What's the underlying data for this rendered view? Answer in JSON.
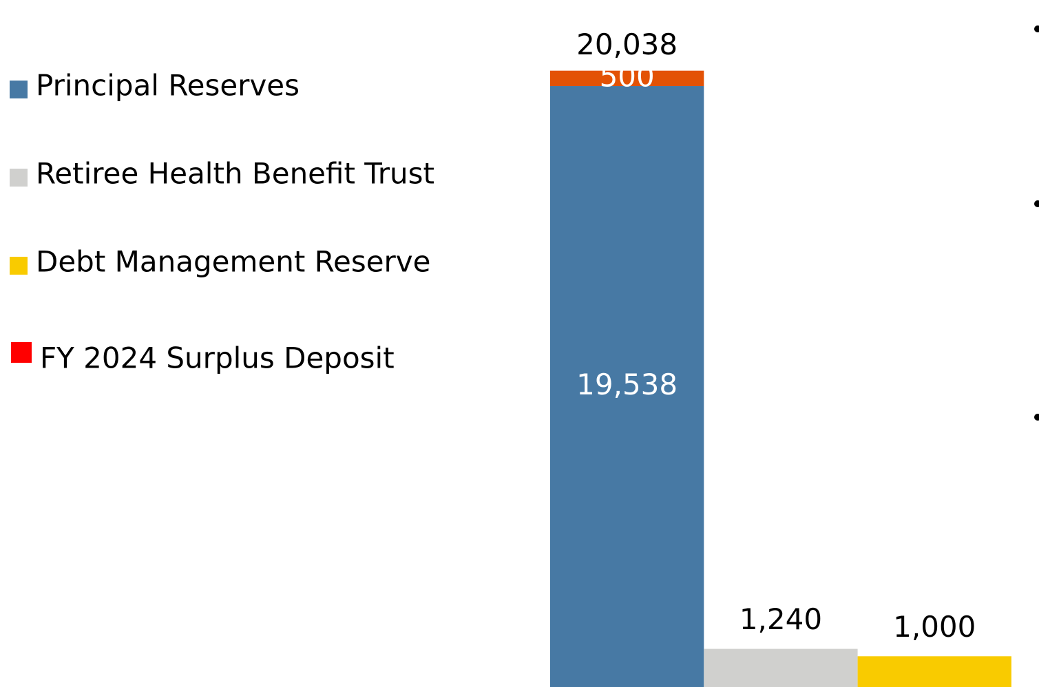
{
  "chart_data": {
    "type": "stacked_bar",
    "categories": [
      null,
      null,
      null
    ],
    "series": [
      {
        "name": "Principal Reserves",
        "color": "#4779a4",
        "values": [
          19538,
          null,
          null
        ],
        "value_labels": [
          "19,538",
          null,
          null
        ]
      },
      {
        "name": "Retiree Health Benefit Trust",
        "color": "#d0d0ce",
        "values": [
          null,
          1240,
          null
        ],
        "value_labels": [
          null,
          "1,240",
          null
        ]
      },
      {
        "name": "Debt Management Reserve",
        "color": "#f9cb00",
        "values": [
          null,
          null,
          1000
        ],
        "value_labels": [
          null,
          null,
          "1,000"
        ]
      },
      {
        "name": "FY 2024 Surplus Deposit",
        "color": "#e35205",
        "legend_color": "#ff0000",
        "values": [
          500,
          null,
          null
        ]
      }
    ],
    "totals": [
      20038,
      null,
      null
    ],
    "total_labels": [
      "20,038",
      null,
      null
    ],
    "ylim": [
      0,
      22336
    ]
  }
}
